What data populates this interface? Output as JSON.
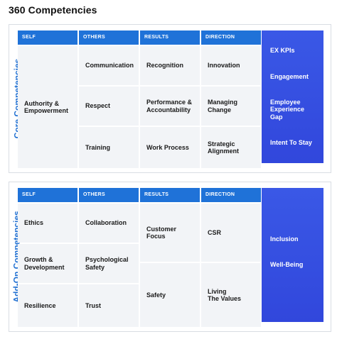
{
  "title": "360 Competencies",
  "core": {
    "side_label": "Core Competencies",
    "columns": [
      "SELF",
      "OTHERS",
      "RESULTS",
      "DIRECTION"
    ],
    "self": [
      "Authority &\nEmpowerment"
    ],
    "others": [
      "Communication",
      "Respect",
      "Training"
    ],
    "results": [
      "Recognition",
      "Performance &\nAccountability",
      "Work Process"
    ],
    "direction": [
      "Innovation",
      "Managing\nChange",
      "Strategic\nAlignment"
    ],
    "ex_items": [
      "EX KPIs",
      "Engagement",
      "Employee\nExperience\nGap",
      "Intent To Stay"
    ]
  },
  "addon": {
    "side_label": "Add-On Competencies",
    "columns": [
      "SELF",
      "OTHERS",
      "RESULTS",
      "DIRECTION"
    ],
    "self": [
      "Ethics",
      "Growth &\nDevelopment",
      "Resilience"
    ],
    "others": [
      "Collaboration",
      "Psychological\nSafety",
      "Trust"
    ],
    "results": [
      "Customer\nFocus",
      "Safety"
    ],
    "direction": [
      "CSR",
      "Living\nThe Values"
    ],
    "ex_items": [
      "Inclusion",
      "Well-Being"
    ]
  },
  "colors": {
    "accent": "#1f72d8",
    "ex_box": "#3a58e6",
    "cell_bg": "#f2f4f7"
  }
}
